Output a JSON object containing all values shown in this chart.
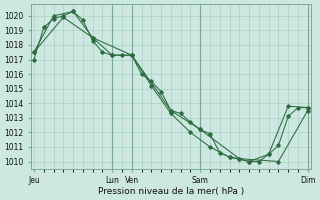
{
  "xlabel": "Pression niveau de la mer( hPa )",
  "bg_color": "#cce8e0",
  "grid_color": "#a8c8c0",
  "line_color": "#2d6b40",
  "vline_color": "#7aaa96",
  "spine_color": "#7aaa96",
  "ylim": [
    1009.5,
    1020.8
  ],
  "yticks": [
    1010,
    1011,
    1012,
    1013,
    1014,
    1015,
    1016,
    1017,
    1018,
    1019,
    1020
  ],
  "xtick_labels": [
    "Jeu",
    "Lun",
    "Ven",
    "Sam",
    "Dim"
  ],
  "xtick_positions": [
    0,
    8,
    10,
    17,
    28
  ],
  "xlim": [
    -0.3,
    28.3
  ],
  "vlines": [
    8,
    10,
    17,
    28
  ],
  "line1_x": [
    0,
    1,
    2,
    3,
    4,
    5,
    6,
    7,
    8,
    9,
    10,
    11,
    12,
    13,
    14,
    15,
    16,
    17,
    18,
    19,
    20,
    21,
    22,
    23,
    24,
    25,
    26,
    27,
    28
  ],
  "line1_y": [
    1017.0,
    1019.2,
    1019.8,
    1020.0,
    1020.3,
    1019.7,
    1018.3,
    1017.5,
    1017.3,
    1017.3,
    1017.3,
    1016.0,
    1015.5,
    1014.8,
    1013.5,
    1013.3,
    1012.7,
    1012.2,
    1011.9,
    1010.6,
    1010.3,
    1010.2,
    1010.0,
    1010.0,
    1010.5,
    1011.1,
    1013.1,
    1013.7,
    1013.7
  ],
  "line2_x": [
    0,
    3,
    6,
    10,
    14,
    17,
    21,
    25,
    28
  ],
  "line2_y": [
    1017.5,
    1019.9,
    1018.5,
    1017.3,
    1013.5,
    1012.2,
    1010.2,
    1010.0,
    1013.5
  ],
  "line3_x": [
    0,
    2,
    4,
    6,
    8,
    10,
    12,
    14,
    16,
    18,
    20,
    22,
    24,
    26,
    28
  ],
  "line3_y": [
    1017.5,
    1020.0,
    1020.3,
    1018.5,
    1017.3,
    1017.3,
    1015.2,
    1013.3,
    1012.0,
    1011.0,
    1010.3,
    1010.0,
    1010.5,
    1013.8,
    1013.7
  ],
  "xlabel_fontsize": 6.5,
  "ytick_fontsize": 5.5,
  "xtick_fontsize": 5.5
}
